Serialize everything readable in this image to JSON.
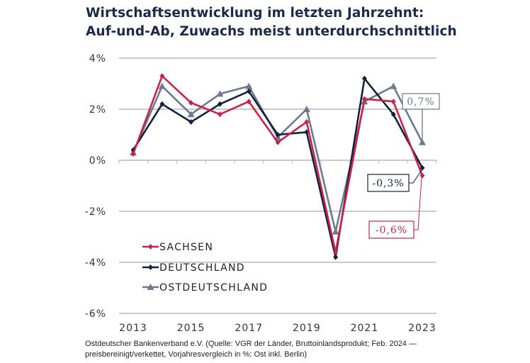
{
  "title_line1": "Wirtschaftsentwicklung im letzten Jahrzehnt:",
  "title_line2": "Auf-und-Ab, Zuwachs meist unterdurchschnittlich",
  "source_line1": "Ostdeutscher Bankenverband e.V. (Quelle: VGR der Länder, Bruttoinlandsprodukt; Feb. 2024 —",
  "source_line2": "preisbereinigt/verkettet, Vorjahresvergleich in %; Ost inkl. Berlin)",
  "chart_data": {
    "type": "line",
    "title": "Wirtschaftsentwicklung im letzten Jahrzehnt: Auf-und-Ab, Zuwachs meist unterdurchschnittlich",
    "xlabel": "",
    "ylabel": "",
    "x": [
      2013,
      2014,
      2015,
      2016,
      2017,
      2018,
      2019,
      2020,
      2021,
      2022,
      2023
    ],
    "x_tick_labels": [
      "2013",
      "2015",
      "2017",
      "2019",
      "2021",
      "2023"
    ],
    "y_ticks": [
      4,
      2,
      0,
      -2,
      -4,
      -6
    ],
    "y_tick_labels": [
      "4%",
      "2%",
      "0%",
      "-2%",
      "-4%",
      "-6%"
    ],
    "ylim": [
      -6,
      4
    ],
    "grid": true,
    "legend_position": "bottom-left",
    "series": [
      {
        "name": "SACHSEN",
        "color": "#c8234a",
        "marker": "diamond",
        "values": [
          0.25,
          3.3,
          2.25,
          1.8,
          2.3,
          0.7,
          1.5,
          -3.6,
          2.4,
          2.3,
          -0.6
        ]
      },
      {
        "name": "DEUTSCHLAND",
        "color": "#14213d",
        "marker": "diamond",
        "values": [
          0.4,
          2.2,
          1.5,
          2.2,
          2.7,
          1.0,
          1.1,
          -3.8,
          3.2,
          1.8,
          -0.3
        ]
      },
      {
        "name": "OSTDEUTSCHLAND",
        "color": "#6b7a90",
        "marker": "triangle",
        "values": [
          0.3,
          2.9,
          1.8,
          2.6,
          2.9,
          0.9,
          2.0,
          -2.8,
          2.3,
          2.9,
          0.7
        ]
      }
    ],
    "annotations": [
      {
        "series": "OSTDEUTSCHLAND",
        "x": 2023,
        "text": "0,7%",
        "color": "#6b7a90"
      },
      {
        "series": "DEUTSCHLAND",
        "x": 2023,
        "text": "-0,3%",
        "color": "#14213d"
      },
      {
        "series": "SACHSEN",
        "x": 2023,
        "text": "-0,6%",
        "color": "#c8234a"
      }
    ]
  }
}
